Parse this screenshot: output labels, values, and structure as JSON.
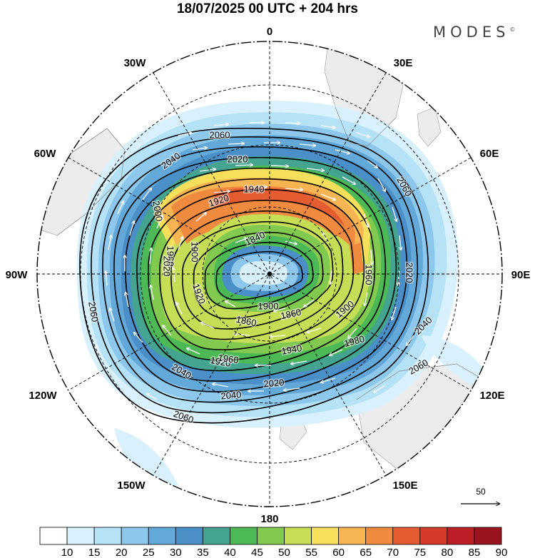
{
  "title": "18/07/2025  00 UTC  + 204 hrs",
  "brand": {
    "name": "MODES",
    "mark": "©"
  },
  "longitude_labels": [
    {
      "id": "lon-0",
      "text": "0"
    },
    {
      "id": "lon-30e",
      "text": "30E"
    },
    {
      "id": "lon-60e",
      "text": "60E"
    },
    {
      "id": "lon-90e",
      "text": "90E"
    },
    {
      "id": "lon-120e",
      "text": "120E"
    },
    {
      "id": "lon-150e",
      "text": "150E"
    },
    {
      "id": "lon-180",
      "text": "180"
    },
    {
      "id": "lon-150w",
      "text": "150W"
    },
    {
      "id": "lon-120w",
      "text": "120W"
    },
    {
      "id": "lon-90w",
      "text": "90W"
    },
    {
      "id": "lon-60w",
      "text": "60W"
    },
    {
      "id": "lon-30w",
      "text": "30W"
    }
  ],
  "contour_labels": [
    "1840",
    "1860",
    "1860",
    "1900",
    "1900",
    "1900",
    "1920",
    "1920",
    "1920",
    "1940",
    "1940",
    "1960",
    "1960",
    "1960",
    "1980",
    "2000",
    "2020",
    "2020",
    "2020",
    "2020",
    "2040",
    "2040",
    "2040",
    "2040",
    "2060",
    "2060",
    "2060",
    "2060",
    "2060"
  ],
  "reference_vector": {
    "label": "50"
  },
  "colorbar": {
    "levels": [
      "10",
      "15",
      "20",
      "25",
      "30",
      "35",
      "40",
      "45",
      "50",
      "55",
      "60",
      "65",
      "70",
      "75",
      "80",
      "85",
      "90"
    ],
    "colors": [
      "#ffffff",
      "#d9f1fc",
      "#b5e2f6",
      "#8dc8ec",
      "#62a8d9",
      "#4a8fc8",
      "#44a48f",
      "#4cb856",
      "#82c94f",
      "#c5de55",
      "#f6df5a",
      "#f6b552",
      "#f08a3f",
      "#e45c2f",
      "#d63a2b",
      "#bd1f26",
      "#9a1420"
    ]
  }
}
